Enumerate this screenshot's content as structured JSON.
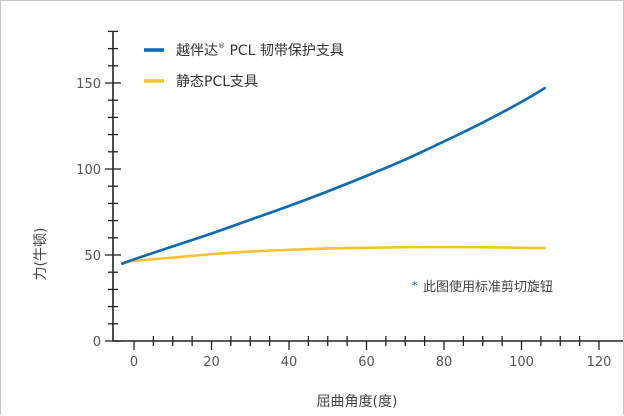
{
  "chart_data": {
    "type": "line",
    "xlabel": "屈曲角度(度)",
    "ylabel": "力(牛顿)",
    "xlim": [
      -4,
      122
    ],
    "ylim": [
      0,
      180
    ],
    "x_ticks": [
      0,
      20,
      40,
      60,
      80,
      100,
      120
    ],
    "y_ticks": [
      0,
      50,
      100,
      150
    ],
    "grid": false,
    "legend_position": "top-left",
    "series": [
      {
        "name": "越伴达® PCL 韧带保护支具",
        "legend_main": "越伴达",
        "legend_mark": "®",
        "legend_rest": " PCL 韧带保护支具",
        "color": "#0a6ab3",
        "x": [
          -3,
          0,
          10,
          20,
          30,
          40,
          50,
          60,
          70,
          80,
          90,
          100,
          106
        ],
        "y": [
          45,
          47.5,
          55,
          62.5,
          70.5,
          78.5,
          87,
          96,
          105.5,
          116,
          127,
          139,
          147
        ]
      },
      {
        "name": "静态PCL支具",
        "color": "#f4c430",
        "x": [
          -3,
          0,
          10,
          20,
          30,
          40,
          50,
          60,
          70,
          80,
          90,
          100,
          106
        ],
        "y": [
          45,
          46.5,
          48.5,
          50.5,
          52,
          53,
          53.8,
          54.2,
          54.5,
          54.6,
          54.5,
          54.2,
          54
        ]
      }
    ],
    "annotation": {
      "star": "*",
      "text": "此图使用标准剪切旋钮"
    }
  }
}
